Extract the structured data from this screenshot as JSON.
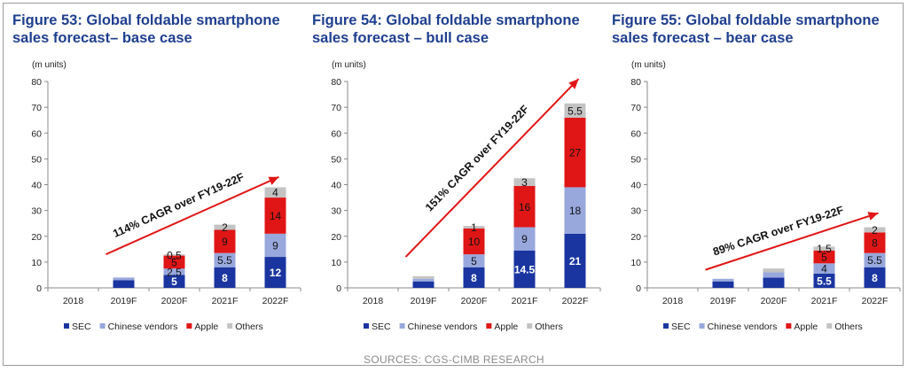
{
  "source": "SOURCES: CGS-CIMB RESEARCH",
  "legend_colors": {
    "SEC": "#1a35a0",
    "Chinese vendors": "#98a8dd",
    "Apple": "#e01616",
    "Others": "#c3c3c3",
    "arrow": "#e01616"
  },
  "chart_data": [
    {
      "type": "bar",
      "stacked": true,
      "title": "Figure 53: Global foldable smartphone sales forecast– base case",
      "unit_label": "(m units)",
      "categories": [
        "2018",
        "2019F",
        "2020F",
        "2021F",
        "2022F"
      ],
      "ylim": [
        0,
        80
      ],
      "yticks": [
        0,
        10,
        20,
        30,
        40,
        50,
        60,
        70,
        80
      ],
      "series": [
        {
          "name": "SEC",
          "values": [
            0,
            3,
            5,
            8,
            12
          ],
          "labels": [
            "",
            "",
            "5",
            "8",
            "12"
          ]
        },
        {
          "name": "Chinese vendors",
          "values": [
            0,
            1,
            2.5,
            5.5,
            9
          ],
          "labels": [
            "",
            "",
            "2.5",
            "5.5",
            "9"
          ]
        },
        {
          "name": "Apple",
          "values": [
            0,
            0,
            5,
            9,
            14
          ],
          "labels": [
            "",
            "",
            "5",
            "9",
            "14"
          ]
        },
        {
          "name": "Others",
          "values": [
            0,
            0,
            0.5,
            2,
            4
          ],
          "labels": [
            "",
            "",
            "0.5",
            "2",
            "4"
          ]
        }
      ],
      "annotation": {
        "text": "114% CAGR over FY19-22F",
        "from": [
          "2019F",
          13
        ],
        "to": [
          "2022F",
          43
        ]
      },
      "legend": "bottom",
      "grid": false
    },
    {
      "type": "bar",
      "stacked": true,
      "title": "Figure 54: Global foldable smartphone sales forecast – bull case",
      "unit_label": "(m units)",
      "categories": [
        "2018",
        "2019F",
        "2020F",
        "2021F",
        "2022F"
      ],
      "ylim": [
        0,
        80
      ],
      "yticks": [
        0,
        10,
        20,
        30,
        40,
        50,
        60,
        70,
        80
      ],
      "series": [
        {
          "name": "SEC",
          "values": [
            0,
            2.5,
            8,
            14.5,
            21
          ],
          "labels": [
            "",
            "",
            "8",
            "14.5",
            "21"
          ]
        },
        {
          "name": "Chinese vendors",
          "values": [
            0,
            1,
            5,
            9,
            18
          ],
          "labels": [
            "",
            "",
            "5",
            "9",
            "18"
          ]
        },
        {
          "name": "Apple",
          "values": [
            0,
            0,
            10,
            16,
            27
          ],
          "labels": [
            "",
            "",
            "10",
            "16",
            "27"
          ]
        },
        {
          "name": "Others",
          "values": [
            0,
            1,
            1,
            3,
            5.5
          ],
          "labels": [
            "",
            "",
            "1",
            "3",
            "5.5"
          ]
        }
      ],
      "annotation": {
        "text": "151% CAGR over FY19-22F",
        "from": [
          "2019F",
          12
        ],
        "to": [
          "2022F",
          81
        ]
      },
      "legend": "bottom",
      "grid": false
    },
    {
      "type": "bar",
      "stacked": true,
      "title": "Figure 55: Global foldable smartphone sales forecast – bear case",
      "unit_label": "(m units)",
      "categories": [
        "2018",
        "2019F",
        "2020F",
        "2021F",
        "2022F"
      ],
      "ylim": [
        0,
        80
      ],
      "yticks": [
        0,
        10,
        20,
        30,
        40,
        50,
        60,
        70,
        80
      ],
      "series": [
        {
          "name": "SEC",
          "values": [
            0,
            2.5,
            4,
            5.5,
            8
          ],
          "labels": [
            "",
            "",
            "",
            "5.5",
            "8"
          ]
        },
        {
          "name": "Chinese vendors",
          "values": [
            0,
            1,
            2,
            4,
            5.5
          ],
          "labels": [
            "",
            "",
            "",
            "4",
            "5.5"
          ]
        },
        {
          "name": "Apple",
          "values": [
            0,
            0,
            0,
            5,
            8
          ],
          "labels": [
            "",
            "",
            "",
            "5",
            "8"
          ]
        },
        {
          "name": "Others",
          "values": [
            0,
            0,
            1.5,
            1.5,
            2
          ],
          "labels": [
            "",
            "",
            "",
            "1.5",
            "2"
          ]
        }
      ],
      "annotation": {
        "text": "89% CAGR over FY19-22F",
        "from": [
          "2019F",
          7
        ],
        "to": [
          "2022F",
          29
        ]
      },
      "legend": "bottom",
      "grid": false
    }
  ]
}
